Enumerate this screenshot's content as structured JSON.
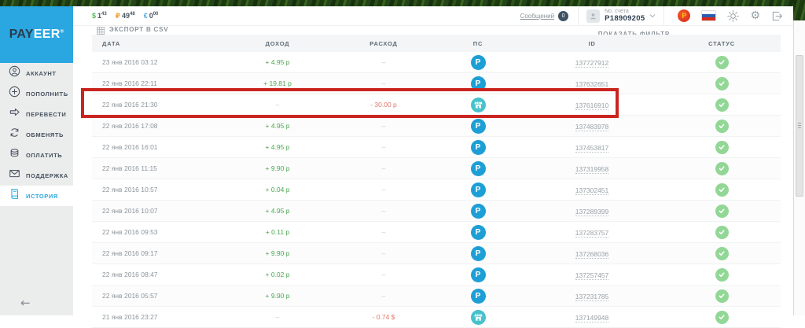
{
  "colors": {
    "payeer_blue": "#2aa7e1",
    "income_green": "#4aa64f",
    "expense_red": "#e4756a",
    "status_green": "#92d796",
    "ps_blue": "#1d9fd6",
    "ps_teal": "#47c2cc",
    "highlight_red": "#c9251f"
  },
  "header": {
    "balances": [
      {
        "symbol": "$",
        "amount": "1",
        "cents": "43",
        "color": "#58b858"
      },
      {
        "symbol": "₽",
        "amount": "49",
        "cents": "48",
        "color": "#f2a33c"
      },
      {
        "symbol": "€",
        "amount": "0",
        "cents": "00",
        "color": "#56a7e0"
      }
    ],
    "messages_label": "Сообщений",
    "messages_count": "0",
    "account_label": "No. счета",
    "account_number": "P18909205"
  },
  "sidebar": {
    "logo_part1": "PAY",
    "logo_part2": "EER",
    "logo_reg": "®",
    "items": [
      {
        "label": "АККАУНТ",
        "icon": "user",
        "active": false
      },
      {
        "label": "ПОПОЛНИТЬ",
        "icon": "plus",
        "active": false
      },
      {
        "label": "ПЕРЕВЕСТИ",
        "icon": "transfer",
        "active": false
      },
      {
        "label": "ОБМЕНЯТЬ",
        "icon": "exchange",
        "active": false
      },
      {
        "label": "ОПЛАТИТЬ",
        "icon": "pay",
        "active": false
      },
      {
        "label": "ПОДДЕРЖКА",
        "icon": "support",
        "active": false
      },
      {
        "label": "ИСТОРИЯ",
        "icon": "history",
        "active": true
      }
    ],
    "back_arrow": "←"
  },
  "toolbar": {
    "export_label": "ЭКСПОРТ В CSV",
    "filter_label": "ПОКАЗАТЬ ФИЛЬТР"
  },
  "table": {
    "columns": [
      "ДАТА",
      "ДОХОД",
      "РАСХОД",
      "ПС",
      "ID",
      "СТАТУС"
    ],
    "rows": [
      {
        "date": "23 янв 2016 03:12",
        "income": "+ 4.95 р",
        "expense": "–",
        "ps": "payeer",
        "id": "137727912",
        "status": "ok",
        "highlighted": false
      },
      {
        "date": "22 янв 2016 22:11",
        "income": "+ 19.81 р",
        "expense": "–",
        "ps": "payeer",
        "id": "137632651",
        "status": "ok",
        "highlighted": false
      },
      {
        "date": "22 янв 2016 21:30",
        "income": "–",
        "expense": "- 30.00 р",
        "ps": "shop",
        "id": "137616910",
        "status": "ok",
        "highlighted": true
      },
      {
        "date": "22 янв 2016 17:08",
        "income": "+ 4.95 р",
        "expense": "–",
        "ps": "payeer",
        "id": "137483978",
        "status": "ok",
        "highlighted": false
      },
      {
        "date": "22 янв 2016 16:01",
        "income": "+ 4.95 р",
        "expense": "–",
        "ps": "payeer",
        "id": "137453817",
        "status": "ok",
        "highlighted": false
      },
      {
        "date": "22 янв 2016 11:15",
        "income": "+ 9.90 р",
        "expense": "–",
        "ps": "payeer",
        "id": "137319958",
        "status": "ok",
        "highlighted": false
      },
      {
        "date": "22 янв 2016 10:57",
        "income": "+ 0.04 р",
        "expense": "–",
        "ps": "payeer",
        "id": "137302451",
        "status": "ok",
        "highlighted": false
      },
      {
        "date": "22 янв 2016 10:07",
        "income": "+ 4.95 р",
        "expense": "–",
        "ps": "payeer",
        "id": "137289399",
        "status": "ok",
        "highlighted": false
      },
      {
        "date": "22 янв 2016 09:53",
        "income": "+ 0.11 р",
        "expense": "–",
        "ps": "payeer",
        "id": "137283757",
        "status": "ok",
        "highlighted": false
      },
      {
        "date": "22 янв 2016 09:17",
        "income": "+ 9.90 р",
        "expense": "–",
        "ps": "payeer",
        "id": "137268036",
        "status": "ok",
        "highlighted": false
      },
      {
        "date": "22 янв 2016 08:47",
        "income": "+ 0.02 р",
        "expense": "–",
        "ps": "payeer",
        "id": "137257457",
        "status": "ok",
        "highlighted": false
      },
      {
        "date": "22 янв 2016 05:57",
        "income": "+ 9.90 р",
        "expense": "–",
        "ps": "payeer",
        "id": "137231785",
        "status": "ok",
        "highlighted": false
      },
      {
        "date": "21 янв 2016 23:27",
        "income": "–",
        "expense": "- 0.74 $",
        "ps": "shop",
        "id": "137149948",
        "status": "ok",
        "highlighted": false
      }
    ]
  }
}
